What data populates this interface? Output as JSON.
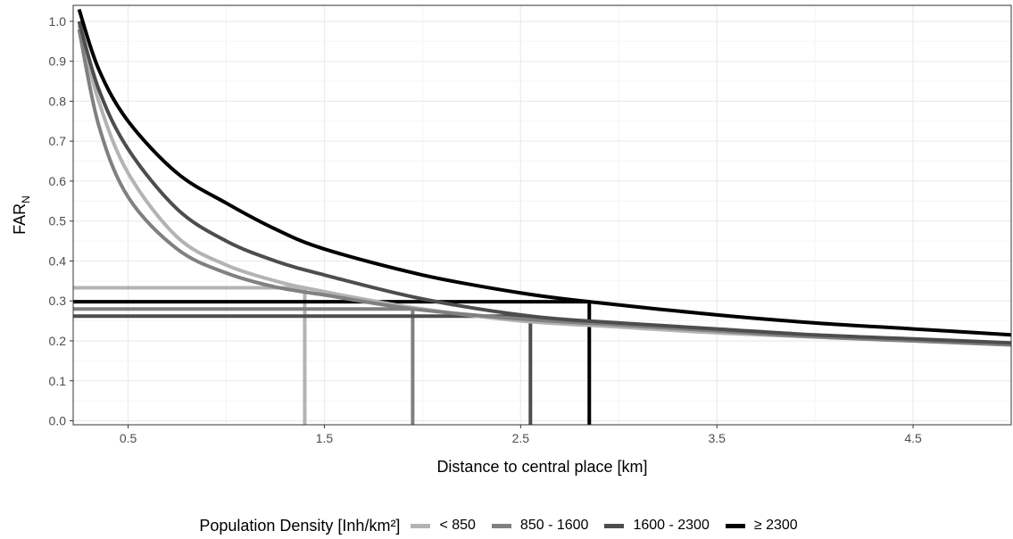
{
  "chart_data": {
    "type": "line",
    "xlabel": "Distance to central place [km]",
    "ylabel_main": "FAR",
    "ylabel_sub": "N",
    "xlim": [
      0.22,
      5.0
    ],
    "ylim": [
      -0.01,
      1.04
    ],
    "x_ticks": [
      0.5,
      1.5,
      2.5,
      3.5,
      4.5
    ],
    "x_tick_labels": [
      "0.5",
      "1.5",
      "2.5",
      "3.5",
      "4.5"
    ],
    "y_ticks": [
      0.0,
      0.1,
      0.2,
      0.3,
      0.4,
      0.5,
      0.6,
      0.7,
      0.8,
      0.9,
      1.0
    ],
    "y_tick_labels": [
      "0.0",
      "0.1",
      "0.2",
      "0.3",
      "0.4",
      "0.5",
      "0.6",
      "0.7",
      "0.8",
      "0.9",
      "1.0"
    ],
    "grid": true,
    "legend_position": "bottom",
    "legend_title": "Population Density [Inh/km²]",
    "series": [
      {
        "name": "< 850",
        "color": "#b3b3b3",
        "x": [
          0.25,
          0.35,
          0.5,
          0.75,
          1.0,
          1.25,
          1.4,
          1.75,
          2.0,
          2.5,
          3.0,
          3.5,
          4.0,
          4.5,
          5.0
        ],
        "y": [
          0.99,
          0.8,
          0.62,
          0.46,
          0.39,
          0.35,
          0.333,
          0.3,
          0.28,
          0.25,
          0.235,
          0.22,
          0.21,
          0.2,
          0.19
        ],
        "threshold_x": 1.4,
        "threshold_y": 0.333
      },
      {
        "name": "850 - 1600",
        "color": "#808080",
        "x": [
          0.25,
          0.35,
          0.5,
          0.75,
          1.0,
          1.25,
          1.5,
          1.95,
          2.5,
          3.0,
          3.5,
          4.0,
          4.5,
          5.0
        ],
        "y": [
          0.98,
          0.74,
          0.56,
          0.43,
          0.37,
          0.335,
          0.315,
          0.28,
          0.255,
          0.24,
          0.225,
          0.21,
          0.2,
          0.19
        ],
        "threshold_x": 1.95,
        "threshold_y": 0.28
      },
      {
        "name": "1600 - 2300",
        "color": "#4d4d4d",
        "x": [
          0.25,
          0.35,
          0.5,
          0.75,
          1.0,
          1.25,
          1.5,
          2.0,
          2.55,
          3.0,
          3.5,
          4.0,
          4.5,
          5.0
        ],
        "y": [
          1.0,
          0.83,
          0.68,
          0.53,
          0.45,
          0.4,
          0.365,
          0.305,
          0.262,
          0.245,
          0.23,
          0.215,
          0.205,
          0.195
        ],
        "threshold_x": 2.55,
        "threshold_y": 0.262
      },
      {
        "name": "≥ 2300",
        "color": "#000000",
        "x": [
          0.25,
          0.35,
          0.5,
          0.75,
          1.0,
          1.25,
          1.5,
          2.0,
          2.5,
          2.85,
          3.5,
          4.0,
          4.5,
          5.0
        ],
        "y": [
          1.03,
          0.88,
          0.75,
          0.62,
          0.545,
          0.48,
          0.43,
          0.365,
          0.32,
          0.298,
          0.265,
          0.245,
          0.23,
          0.215
        ],
        "threshold_x": 2.85,
        "threshold_y": 0.298
      }
    ]
  }
}
